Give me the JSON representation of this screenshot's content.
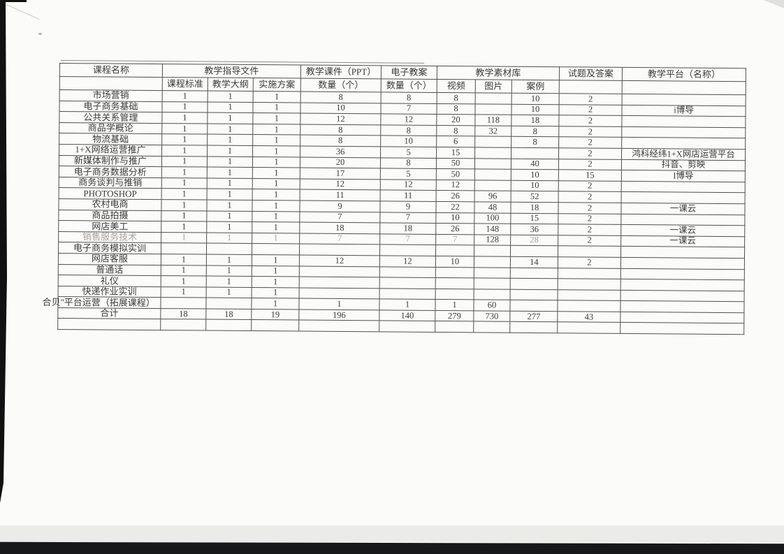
{
  "colors": {
    "ink": "#3a3a3a",
    "faded_ink": "#aaa49d",
    "border": "#4f4f4c",
    "scan_edge": "#16181a"
  },
  "table": {
    "header": {
      "course_name": "课程名称",
      "guidance": "教学指导文件",
      "guidance_sub": [
        "课程标准",
        "教学大纲",
        "实施方案"
      ],
      "ppt": "教学课件（PPT）",
      "ppt_sub": "数量（个）",
      "lesson_plan": "电子教案",
      "lesson_plan_sub": "数量（个）",
      "materials": "教学素材库",
      "materials_sub": [
        "视频",
        "图片",
        "案例"
      ],
      "questions": "试题及答案",
      "platform": "教学平台（名称）"
    },
    "columns_order": [
      "课程标准",
      "教学大纲",
      "实施方案",
      "教学课件PPT数量",
      "电子教案数量",
      "视频",
      "图片",
      "案例",
      "试题及答案",
      "教学平台"
    ],
    "rows": [
      {
        "name": "市场营销",
        "cells": [
          "1",
          "1",
          "1",
          "8",
          "8",
          "8",
          "",
          "10",
          "2",
          ""
        ]
      },
      {
        "name": "电子商务基础",
        "cells": [
          "1",
          "1",
          "1",
          "10",
          "7",
          "8",
          "",
          "10",
          "2",
          "i博导"
        ]
      },
      {
        "name": "公共关系管理",
        "cells": [
          "1",
          "1",
          "1",
          "12",
          "12",
          "20",
          "118",
          "18",
          "2",
          ""
        ]
      },
      {
        "name": "商品学概论",
        "cells": [
          "1",
          "1",
          "1",
          "8",
          "8",
          "8",
          "32",
          "8",
          "2",
          ""
        ]
      },
      {
        "name": "物流基础",
        "cells": [
          "1",
          "1",
          "1",
          "8",
          "10",
          "6",
          "",
          "8",
          "2",
          ""
        ]
      },
      {
        "name": "1+X网络运营推广",
        "cells": [
          "1",
          "1",
          "1",
          "36",
          "5",
          "15",
          "",
          "",
          "2",
          "鸿科经纬1+X网店运营平台"
        ]
      },
      {
        "name": "新媒体制作与推广",
        "cells": [
          "1",
          "1",
          "1",
          "20",
          "8",
          "50",
          "",
          "40",
          "2",
          "抖音、剪映"
        ]
      },
      {
        "name": "电子商务数据分析",
        "cells": [
          "1",
          "1",
          "1",
          "17",
          "5",
          "50",
          "",
          "10",
          "15",
          "I博导"
        ]
      },
      {
        "name": "商务谈判与推销",
        "cells": [
          "1",
          "1",
          "1",
          "12",
          "12",
          "12",
          "",
          "10",
          "2",
          ""
        ]
      },
      {
        "name": "PHOTOSHOP",
        "cells": [
          "1",
          "1",
          "1",
          "11",
          "11",
          "26",
          "96",
          "52",
          "2",
          ""
        ]
      },
      {
        "name": "农村电商",
        "cells": [
          "1",
          "1",
          "1",
          "9",
          "9",
          "22",
          "48",
          "18",
          "2",
          "一课云"
        ]
      },
      {
        "name": "商品拍摄",
        "cells": [
          "1",
          "1",
          "1",
          "7",
          "7",
          "10",
          "100",
          "15",
          "2",
          ""
        ]
      },
      {
        "name": "网店美工",
        "cells": [
          "1",
          "1",
          "1",
          "18",
          "18",
          "26",
          "148",
          "36",
          "2",
          "一课云"
        ]
      },
      {
        "name": "销售服务技术",
        "cells": [
          "1",
          "1",
          "1",
          "7",
          "7",
          "7",
          "128",
          "28",
          "2",
          "一课云"
        ],
        "name_faded": true,
        "faded_cells": [
          0,
          1,
          2,
          3,
          4,
          5,
          7
        ]
      },
      {
        "name": "电子商务模拟实训",
        "cells": [
          "",
          "",
          "",
          "",
          "",
          "",
          "",
          "",
          "",
          ""
        ]
      },
      {
        "name": "网店客服",
        "cells": [
          "1",
          "1",
          "1",
          "12",
          "12",
          "10",
          "",
          "14",
          "2",
          ""
        ]
      },
      {
        "name": "普通话",
        "cells": [
          "1",
          "1",
          "1",
          "",
          "",
          "",
          "",
          "",
          "",
          ""
        ]
      },
      {
        "name": "礼仪",
        "cells": [
          "1",
          "1",
          "1",
          "",
          "",
          "",
          "",
          "",
          "",
          ""
        ]
      },
      {
        "name": "快递作业实训",
        "cells": [
          "1",
          "1",
          "1",
          "",
          "",
          "",
          "",
          "",
          "",
          ""
        ]
      },
      {
        "name": "合贝\"平台运营（拓展课程）",
        "cells": [
          "",
          "",
          "1",
          "1",
          "1",
          "1",
          "60",
          "",
          "",
          ""
        ],
        "overflow_left": true
      },
      {
        "name": "合计",
        "cells": [
          "18",
          "18",
          "19",
          "196",
          "140",
          "279",
          "730",
          "277",
          "43",
          ""
        ]
      },
      {
        "name": "",
        "cells": [
          "",
          "",
          "",
          "",
          "",
          "",
          "",
          "",
          "",
          ""
        ]
      }
    ]
  }
}
